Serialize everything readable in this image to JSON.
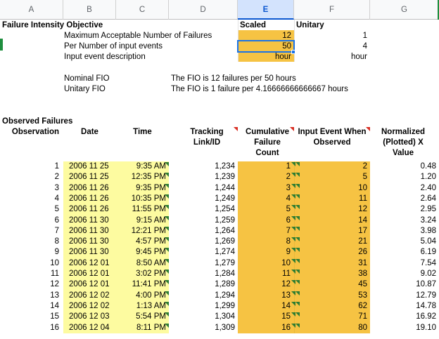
{
  "columns": [
    "A",
    "B",
    "C",
    "D",
    "E",
    "F",
    "G"
  ],
  "objective": {
    "title": "Failure Intensity Objective",
    "scaled_header": "Scaled",
    "unitary_header": "Unitary",
    "rows": [
      {
        "label": "Maximum Acceptable Number of Failures",
        "scaled": "12",
        "unitary": "1"
      },
      {
        "label": "Per Number of input events",
        "scaled": "50",
        "unitary": "4"
      },
      {
        "label": "Input event description",
        "scaled": "hour",
        "unitary": "hour"
      }
    ]
  },
  "fio": {
    "nominal_label": "Nominal FIO",
    "nominal_text": "The FIO is 12 failures per 50 hours",
    "unitary_label": "Unitary FIO",
    "unitary_text": "The FIO is 1 failure per 4.16666666666667 hours"
  },
  "observed": {
    "title": "Observed Failures",
    "headers": {
      "observation": "Observation",
      "date": "Date",
      "time": "Time",
      "tracking_1": "Tracking",
      "tracking_2": "Link/ID",
      "cumulative_1": "Cumulative",
      "cumulative_2": "Failure",
      "cumulative_3": "Count",
      "input_1": "Input Event When",
      "input_2": "Observed",
      "norm_1": "Normalized",
      "norm_2": "(Plotted) X",
      "norm_3": "Value"
    },
    "rows": [
      {
        "obs": "1",
        "date": "2006 11 25",
        "time": "9:35 AM",
        "track": "1,234",
        "count": "1",
        "input": "2",
        "norm": "0.48"
      },
      {
        "obs": "2",
        "date": "2006 11 25",
        "time": "12:35 PM",
        "track": "1,239",
        "count": "2",
        "input": "5",
        "norm": "1.20"
      },
      {
        "obs": "3",
        "date": "2006 11 26",
        "time": "9:35 PM",
        "track": "1,244",
        "count": "3",
        "input": "10",
        "norm": "2.40"
      },
      {
        "obs": "4",
        "date": "2006 11 26",
        "time": "10:35 PM",
        "track": "1,249",
        "count": "4",
        "input": "11",
        "norm": "2.64"
      },
      {
        "obs": "5",
        "date": "2006 11 26",
        "time": "11:55 PM",
        "track": "1,254",
        "count": "5",
        "input": "12",
        "norm": "2.95"
      },
      {
        "obs": "6",
        "date": "2006 11 30",
        "time": "9:15 AM",
        "track": "1,259",
        "count": "6",
        "input": "14",
        "norm": "3.24"
      },
      {
        "obs": "7",
        "date": "2006 11 30",
        "time": "12:21 PM",
        "track": "1,264",
        "count": "7",
        "input": "17",
        "norm": "3.98"
      },
      {
        "obs": "8",
        "date": "2006 11 30",
        "time": "4:57 PM",
        "track": "1,269",
        "count": "8",
        "input": "21",
        "norm": "5.04"
      },
      {
        "obs": "9",
        "date": "2006 11 30",
        "time": "9:45 PM",
        "track": "1,274",
        "count": "9",
        "input": "26",
        "norm": "6.19"
      },
      {
        "obs": "10",
        "date": "2006 12 01",
        "time": "8:50 AM",
        "track": "1,279",
        "count": "10",
        "input": "31",
        "norm": "7.54"
      },
      {
        "obs": "11",
        "date": "2006 12 01",
        "time": "3:02 PM",
        "track": "1,284",
        "count": "11",
        "input": "38",
        "norm": "9.02"
      },
      {
        "obs": "12",
        "date": "2006 12 01",
        "time": "11:41 PM",
        "track": "1,289",
        "count": "12",
        "input": "45",
        "norm": "10.87"
      },
      {
        "obs": "13",
        "date": "2006 12 02",
        "time": "4:00 PM",
        "track": "1,294",
        "count": "13",
        "input": "53",
        "norm": "12.79"
      },
      {
        "obs": "14",
        "date": "2006 12 02",
        "time": "1:13 AM",
        "track": "1,299",
        "count": "14",
        "input": "62",
        "norm": "14.78"
      },
      {
        "obs": "15",
        "date": "2006 12 03",
        "time": "5:54 PM",
        "track": "1,304",
        "count": "15",
        "input": "71",
        "norm": "16.92"
      },
      {
        "obs": "16",
        "date": "2006 12 04",
        "time": "8:11 PM",
        "track": "1,309",
        "count": "16",
        "input": "80",
        "norm": "19.10"
      }
    ]
  },
  "colors": {
    "scaled_fill": "#f6c343",
    "date_fill": "#fdfba0",
    "selection": "#1a73e8",
    "note_marker_green": "#2e7d32",
    "note_marker_red": "#d93025"
  }
}
